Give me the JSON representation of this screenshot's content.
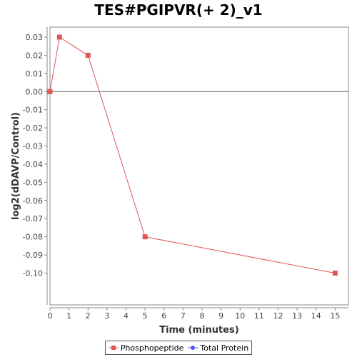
{
  "chart_data": {
    "type": "line",
    "title": "TES#PGIPVR(+ 2)_v1",
    "xlabel": "Time (minutes)",
    "ylabel": "log2(dDAVP/Control)",
    "xlim": [
      0,
      15.7
    ],
    "ylim": [
      -0.1175,
      0.0355
    ],
    "xticks": [
      0,
      1,
      2,
      3,
      4,
      5,
      6,
      7,
      8,
      9,
      10,
      11,
      12,
      13,
      14,
      15
    ],
    "yticks": [
      0.03,
      0.02,
      0.01,
      0.0,
      -0.01,
      -0.02,
      -0.03,
      -0.04,
      -0.05,
      -0.06,
      -0.07,
      -0.08,
      -0.09,
      -0.1
    ],
    "ytick_labels": [
      "0.03",
      "0.02",
      "0.01",
      "0.00",
      "-0.01",
      "-0.02",
      "-0.03",
      "-0.04",
      "-0.05",
      "-0.06",
      "-0.07",
      "-0.08",
      "-0.09",
      "-0.10"
    ],
    "zero_line": true,
    "grid": false,
    "legend_position": "bottom-center",
    "series": [
      {
        "name": "Phosphopeptide",
        "color": "#e05555",
        "marker": "square",
        "x": [
          0,
          0.5,
          2,
          5,
          15
        ],
        "y": [
          0.0,
          0.03,
          0.02,
          -0.08,
          -0.1
        ]
      },
      {
        "name": "Total Protein",
        "color": "#5555ee",
        "marker": "circle",
        "x": [],
        "y": []
      }
    ]
  }
}
